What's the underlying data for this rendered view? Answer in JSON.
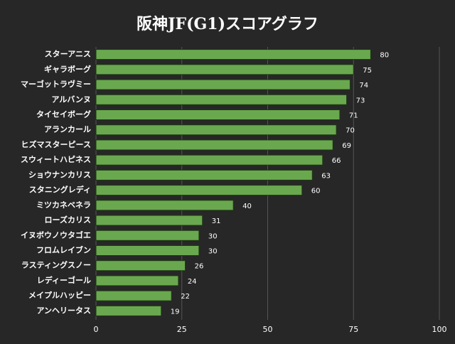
{
  "chart_data": {
    "type": "hbar",
    "title": "阪神JF(G1)スコアグラフ",
    "categories": [
      "スターアニス",
      "ギャラボーグ",
      "マーゴットラヴミー",
      "アルバンヌ",
      "タイセイボーグ",
      "アランカール",
      "ヒズマスターピース",
      "スウィートハピネス",
      "ショウナンカリス",
      "スタニングレディ",
      "ミツカネベネラ",
      "ローズカリス",
      "イヌボウノウタゴエ",
      "フロムレイブン",
      "ラスティングスノー",
      "レディーゴール",
      "メイプルハッピー",
      "アンヘリータス"
    ],
    "values": [
      80,
      75,
      74,
      73,
      71,
      70,
      69,
      66,
      63,
      60,
      40,
      31,
      30,
      30,
      26,
      24,
      22,
      19
    ],
    "color": "#6aa84f",
    "xlim": [
      0,
      100
    ],
    "xticks": [
      0,
      25,
      50,
      75,
      100
    ],
    "grid": true
  }
}
